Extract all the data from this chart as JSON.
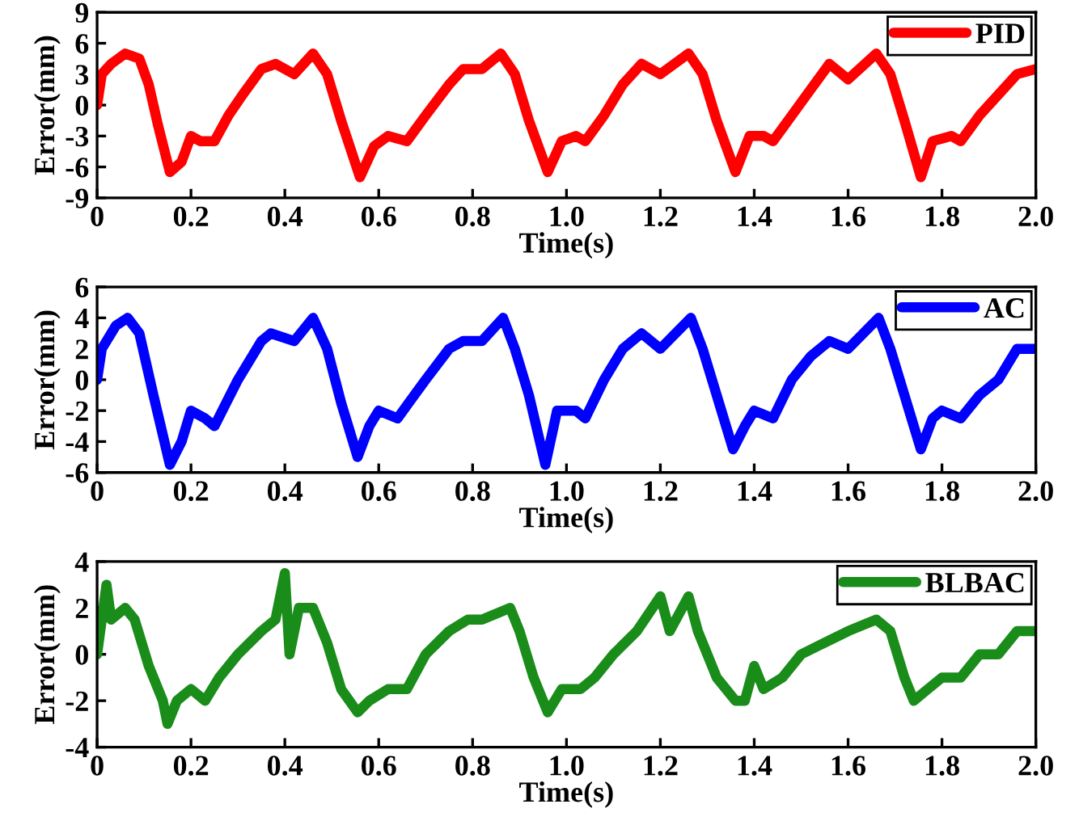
{
  "chart_data": [
    {
      "type": "line",
      "xlabel": "Time(s)",
      "ylabel": "Error(mm)",
      "legend": "top right",
      "line_style": "solid",
      "marker": "none",
      "xlim": [
        0,
        2.0
      ],
      "xticks": [
        {
          "value": 0,
          "label": "0"
        },
        {
          "value": 0.2,
          "label": "0.2"
        },
        {
          "value": 0.4,
          "label": "0.4"
        },
        {
          "value": 0.6,
          "label": "0.6"
        },
        {
          "value": 0.8,
          "label": "0.8"
        },
        {
          "value": 1.0,
          "label": "1.0"
        },
        {
          "value": 1.2,
          "label": "1.2"
        },
        {
          "value": 1.4,
          "label": "1.4"
        },
        {
          "value": 1.6,
          "label": "1.6"
        },
        {
          "value": 1.8,
          "label": "1.8"
        },
        {
          "value": 2.0,
          "label": "2.0"
        }
      ],
      "ylim": [
        -9,
        9
      ],
      "yticks": [
        -9,
        -6,
        -3,
        0,
        3,
        6,
        9
      ],
      "x": [
        0,
        0.01,
        0.03,
        0.06,
        0.09,
        0.11,
        0.13,
        0.155,
        0.18,
        0.2,
        0.22,
        0.25,
        0.28,
        0.31,
        0.35,
        0.38,
        0.42,
        0.46,
        0.49,
        0.52,
        0.56,
        0.59,
        0.62,
        0.66,
        0.7,
        0.75,
        0.78,
        0.82,
        0.86,
        0.89,
        0.92,
        0.96,
        0.99,
        1.02,
        1.04,
        1.08,
        1.12,
        1.16,
        1.2,
        1.26,
        1.29,
        1.32,
        1.36,
        1.39,
        1.42,
        1.44,
        1.48,
        1.52,
        1.56,
        1.6,
        1.66,
        1.69,
        1.72,
        1.755,
        1.78,
        1.82,
        1.84,
        1.88,
        1.92,
        1.96,
        2.0
      ],
      "series": [
        {
          "name": "PID",
          "color": "#ff0000",
          "values": [
            0,
            3,
            4,
            5,
            4.5,
            2,
            -2,
            -6.5,
            -5.5,
            -3,
            -3.5,
            -3.5,
            -1,
            1,
            3.5,
            4,
            3,
            5,
            3,
            -1.5,
            -7,
            -4,
            -3,
            -3.5,
            -1,
            2,
            3.5,
            3.5,
            5,
            3,
            -1.5,
            -6.5,
            -3.5,
            -3,
            -3.5,
            -1,
            2,
            4,
            3,
            5,
            3,
            -1.5,
            -6.5,
            -3,
            -3,
            -3.5,
            -1,
            1.5,
            4,
            2.5,
            5,
            3,
            -1.5,
            -7,
            -3.5,
            -3,
            -3.5,
            -1,
            1,
            3,
            3.5
          ]
        }
      ]
    },
    {
      "type": "line",
      "xlabel": "Time(s)",
      "ylabel": "Error(mm)",
      "legend": "top right",
      "line_style": "solid",
      "marker": "none",
      "xlim": [
        0,
        2.0
      ],
      "xticks": [
        {
          "value": 0,
          "label": "0"
        },
        {
          "value": 0.2,
          "label": "0.2"
        },
        {
          "value": 0.4,
          "label": "0.4"
        },
        {
          "value": 0.6,
          "label": "0.6"
        },
        {
          "value": 0.8,
          "label": "0.8"
        },
        {
          "value": 1.0,
          "label": "1.0"
        },
        {
          "value": 1.2,
          "label": "1.2"
        },
        {
          "value": 1.4,
          "label": "1.4"
        },
        {
          "value": 1.6,
          "label": "1.6"
        },
        {
          "value": 1.8,
          "label": "1.8"
        },
        {
          "value": 2.0,
          "label": "2.0"
        }
      ],
      "ylim": [
        -6,
        6
      ],
      "yticks": [
        -6,
        -4,
        -2,
        0,
        2,
        4,
        6
      ],
      "x": [
        0,
        0.01,
        0.04,
        0.065,
        0.09,
        0.12,
        0.155,
        0.18,
        0.2,
        0.23,
        0.25,
        0.3,
        0.35,
        0.37,
        0.42,
        0.46,
        0.49,
        0.52,
        0.555,
        0.58,
        0.6,
        0.64,
        0.7,
        0.75,
        0.78,
        0.82,
        0.865,
        0.89,
        0.92,
        0.955,
        0.98,
        1.02,
        1.04,
        1.08,
        1.12,
        1.16,
        1.2,
        1.265,
        1.29,
        1.32,
        1.355,
        1.38,
        1.4,
        1.44,
        1.48,
        1.52,
        1.56,
        1.6,
        1.665,
        1.69,
        1.72,
        1.755,
        1.78,
        1.8,
        1.84,
        1.88,
        1.92,
        1.96,
        2.0
      ],
      "series": [
        {
          "name": "AC",
          "color": "#0000ff",
          "values": [
            0,
            2,
            3.5,
            4,
            3,
            -1,
            -5.5,
            -4,
            -2,
            -2.5,
            -3,
            0,
            2.5,
            3,
            2.5,
            4,
            2,
            -1.5,
            -5,
            -3,
            -2,
            -2.5,
            0,
            2,
            2.5,
            2.5,
            4,
            2,
            -1,
            -5.5,
            -2,
            -2,
            -2.5,
            0,
            2,
            3,
            2,
            4,
            2,
            -1,
            -4.5,
            -3,
            -2,
            -2.5,
            0,
            1.5,
            2.5,
            2,
            4,
            2,
            -1,
            -4.5,
            -2.5,
            -2,
            -2.5,
            -1,
            0,
            2,
            2
          ]
        }
      ]
    },
    {
      "type": "line",
      "xlabel": "Time(s)",
      "ylabel": "Error(mm)",
      "legend": "top right",
      "line_style": "solid",
      "marker": "none",
      "xlim": [
        0,
        2.0
      ],
      "xticks": [
        {
          "value": 0,
          "label": "0"
        },
        {
          "value": 0.2,
          "label": "0.2"
        },
        {
          "value": 0.4,
          "label": "0.4"
        },
        {
          "value": 0.6,
          "label": "0.6"
        },
        {
          "value": 0.8,
          "label": "0.8"
        },
        {
          "value": 1.0,
          "label": "1.0"
        },
        {
          "value": 1.2,
          "label": "1.2"
        },
        {
          "value": 1.4,
          "label": "1.4"
        },
        {
          "value": 1.6,
          "label": "1.6"
        },
        {
          "value": 1.8,
          "label": "1.8"
        },
        {
          "value": 2.0,
          "label": "2.0"
        }
      ],
      "ylim": [
        -4,
        4
      ],
      "yticks": [
        -4,
        -2,
        0,
        2,
        4
      ],
      "x": [
        0,
        0.01,
        0.02,
        0.03,
        0.06,
        0.08,
        0.11,
        0.14,
        0.15,
        0.17,
        0.2,
        0.23,
        0.26,
        0.3,
        0.35,
        0.38,
        0.4,
        0.41,
        0.43,
        0.46,
        0.49,
        0.52,
        0.555,
        0.58,
        0.62,
        0.66,
        0.7,
        0.75,
        0.79,
        0.82,
        0.88,
        0.9,
        0.93,
        0.96,
        0.99,
        1.03,
        1.06,
        1.1,
        1.15,
        1.2,
        1.22,
        1.26,
        1.28,
        1.32,
        1.36,
        1.38,
        1.4,
        1.42,
        1.46,
        1.5,
        1.55,
        1.6,
        1.66,
        1.69,
        1.72,
        1.74,
        1.77,
        1.8,
        1.84,
        1.88,
        1.92,
        1.96,
        2.0
      ],
      "series": [
        {
          "name": "BLBAC",
          "color": "#1a8c1a",
          "values": [
            0,
            1.5,
            3,
            1.5,
            2,
            1.5,
            -0.5,
            -2,
            -3,
            -2,
            -1.5,
            -2,
            -1,
            0,
            1,
            1.5,
            3.5,
            0,
            2,
            2,
            0.5,
            -1.5,
            -2.5,
            -2,
            -1.5,
            -1.5,
            0,
            1,
            1.5,
            1.5,
            2,
            1,
            -1,
            -2.5,
            -1.5,
            -1.5,
            -1,
            0,
            1,
            2.5,
            1,
            2.5,
            1,
            -1,
            -2,
            -2,
            -0.5,
            -1.5,
            -1,
            0,
            0.5,
            1,
            1.5,
            1,
            -1,
            -2,
            -1.5,
            -1,
            -1,
            0,
            0,
            1,
            1
          ]
        }
      ]
    }
  ]
}
